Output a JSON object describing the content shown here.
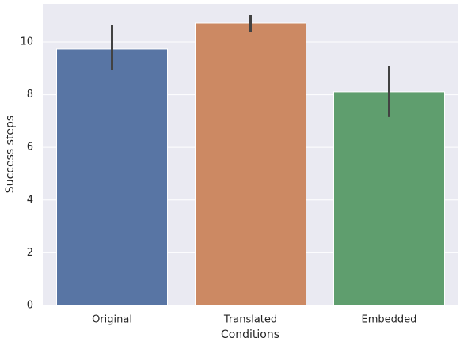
{
  "chart_data": {
    "type": "bar",
    "x_label": "Conditions",
    "y_label": "Success steps",
    "categories": [
      "Original",
      "Translated",
      "Embedded"
    ],
    "values": [
      9.73,
      10.72,
      8.11
    ],
    "ci_low": [
      8.92,
      10.36,
      7.15
    ],
    "ci_high": [
      10.63,
      11.02,
      9.07
    ],
    "colors": [
      "#5875a4",
      "#cc8963",
      "#5f9e6e"
    ],
    "ylim": [
      0,
      11.44
    ],
    "yticks": [
      0,
      2,
      4,
      6,
      8,
      10
    ],
    "grid": true
  }
}
